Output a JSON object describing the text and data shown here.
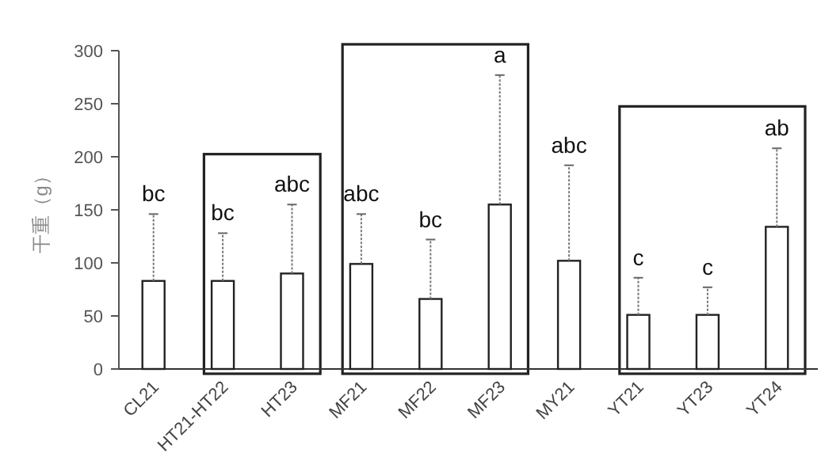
{
  "chart_data": {
    "type": "bar",
    "ylabel": "干重（g）",
    "categories": [
      "CL21",
      "HT21-HT22",
      "HT23",
      "MF21",
      "MF22",
      "MF23",
      "MY21",
      "YT21",
      "YT23",
      "YT24"
    ],
    "values": [
      83,
      83,
      90,
      99,
      66,
      155,
      102,
      51,
      51,
      134
    ],
    "errors": [
      [
        83,
        146
      ],
      [
        83,
        128
      ],
      [
        90,
        155
      ],
      [
        99,
        146
      ],
      [
        66,
        122
      ],
      [
        155,
        277
      ],
      [
        102,
        192
      ],
      [
        51,
        86
      ],
      [
        51,
        77
      ],
      [
        134,
        208
      ]
    ],
    "color": "#ffffff",
    "ylim": [
      0,
      300
    ],
    "yticks": [
      0,
      50,
      100,
      150,
      200,
      250,
      300
    ],
    "annotations": [
      {
        "text": "bc",
        "x": "CL21",
        "y": 146
      },
      {
        "text": "bc",
        "x": "HT21-HT22",
        "y": 128
      },
      {
        "text": "abc",
        "x": "HT23",
        "y": 155
      },
      {
        "text": "abc",
        "x": "MF21",
        "y": 146
      },
      {
        "text": "bc",
        "x": "MF22",
        "y": 122
      },
      {
        "text": "a",
        "x": "MF23",
        "y": 277
      },
      {
        "text": "abc",
        "x": "MY21",
        "y": 192
      },
      {
        "text": "c",
        "x": "YT21",
        "y": 86
      },
      {
        "text": "c",
        "x": "YT23",
        "y": 77
      },
      {
        "text": "ab",
        "x": "YT24",
        "y": 208
      }
    ]
  }
}
